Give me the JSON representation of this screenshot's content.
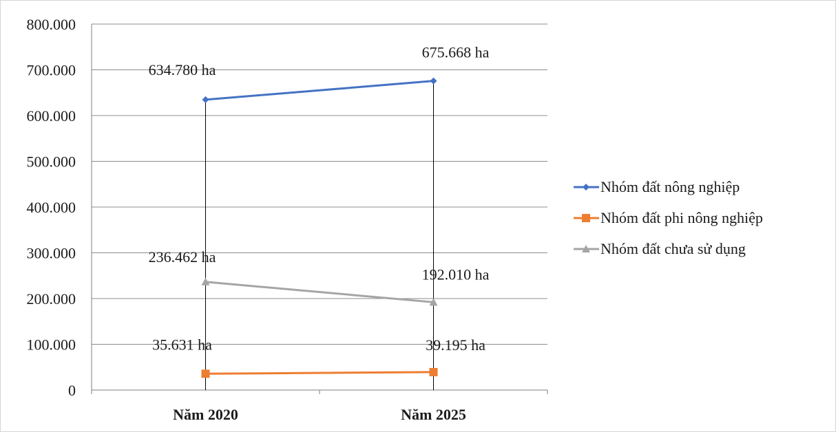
{
  "chart_data": {
    "type": "line",
    "categories": [
      "Năm 2020",
      "Năm 2025"
    ],
    "ylim": [
      0,
      800000
    ],
    "yticks": [
      0,
      100000,
      200000,
      300000,
      400000,
      500000,
      600000,
      700000,
      800000
    ],
    "ytick_labels": [
      "0",
      "100.000",
      "200.000",
      "300.000",
      "400.000",
      "500.000",
      "600.000",
      "700.000",
      "800.000"
    ],
    "grid": true,
    "legend_position": "right",
    "series": [
      {
        "name": "Nhóm đất nông nghiệp",
        "values": [
          634780,
          675668
        ],
        "labels": [
          "634.780 ha",
          "675.668 ha"
        ],
        "color": "#4472c4",
        "marker": "diamond"
      },
      {
        "name": "Nhóm đất phi nông nghiệp",
        "values": [
          35631,
          39195
        ],
        "labels": [
          "35.631 ha",
          "39.195 ha"
        ],
        "color": "#ed7d31",
        "marker": "square"
      },
      {
        "name": "Nhóm đất chưa sử dụng",
        "values": [
          236462,
          192010
        ],
        "labels": [
          "236.462 ha",
          "192.010 ha"
        ],
        "color": "#a5a5a5",
        "marker": "triangle"
      }
    ]
  }
}
